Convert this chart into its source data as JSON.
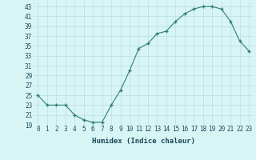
{
  "x": [
    0,
    1,
    2,
    3,
    4,
    5,
    6,
    7,
    8,
    9,
    10,
    11,
    12,
    13,
    14,
    15,
    16,
    17,
    18,
    19,
    20,
    21,
    22,
    23
  ],
  "y": [
    25,
    23,
    23,
    23,
    21,
    20,
    19.5,
    19.5,
    23,
    26,
    30,
    34.5,
    35.5,
    37.5,
    38,
    40,
    41.5,
    42.5,
    43,
    43,
    42.5,
    40,
    36,
    34
  ],
  "line_color": "#2e7d6e",
  "marker_color": "#2e7d6e",
  "bg_color": "#d8f5f5",
  "grid_color": "#b8dede",
  "xlabel": "Humidex (Indice chaleur)",
  "ylim": [
    19,
    44
  ],
  "xlim": [
    -0.5,
    23.5
  ],
  "yticks": [
    19,
    21,
    23,
    25,
    27,
    29,
    31,
    33,
    35,
    37,
    39,
    41,
    43
  ],
  "xticks": [
    0,
    1,
    2,
    3,
    4,
    5,
    6,
    7,
    8,
    9,
    10,
    11,
    12,
    13,
    14,
    15,
    16,
    17,
    18,
    19,
    20,
    21,
    22,
    23
  ],
  "xlabel_fontsize": 6.5,
  "tick_fontsize": 5.5
}
